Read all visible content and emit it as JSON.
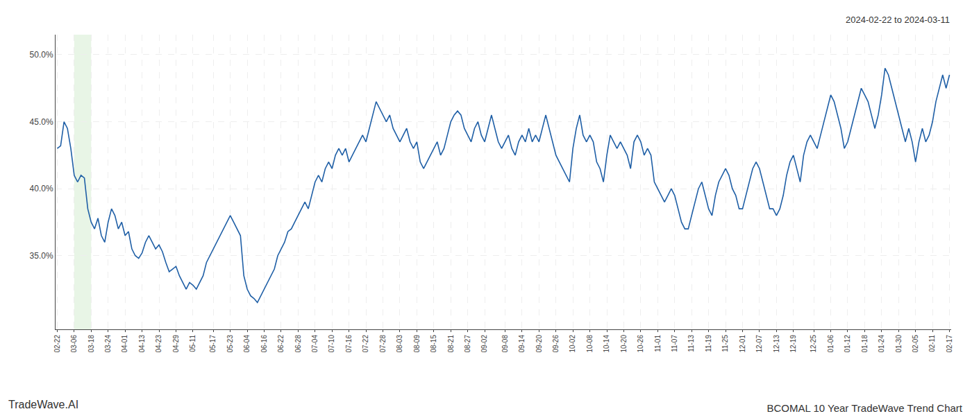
{
  "chart_data": {
    "type": "line",
    "title": "BCOMAL 10 Year TradeWave Trend Chart",
    "subtitle": "2024-02-22 to 2024-03-11",
    "annotations": [
      "TradeWave.AI"
    ],
    "color": "#1f5fa6",
    "grid": true,
    "highlight": {
      "start": "03-06",
      "end": "03-18",
      "color": "#d6ecd2"
    },
    "ylim": [
      29.5,
      51.5
    ],
    "yticks": [
      {
        "value": 35.0,
        "label": "35.0%"
      },
      {
        "value": 40.0,
        "label": "40.0%"
      },
      {
        "value": 45.0,
        "label": "45.0%"
      },
      {
        "value": 50.0,
        "label": "50.0%"
      }
    ],
    "categories": [
      "02-22",
      null,
      null,
      null,
      null,
      "03-06",
      null,
      null,
      null,
      null,
      "03-18",
      null,
      null,
      null,
      null,
      "03-24",
      null,
      null,
      null,
      null,
      "04-01",
      null,
      null,
      null,
      null,
      "04-13",
      null,
      null,
      null,
      null,
      "04-23",
      null,
      null,
      null,
      null,
      "04-29",
      null,
      null,
      null,
      null,
      "05-11",
      null,
      null,
      null,
      null,
      null,
      "05-17",
      null,
      null,
      null,
      null,
      "05-23",
      null,
      null,
      null,
      null,
      "06-04",
      null,
      null,
      null,
      null,
      "06-16",
      null,
      null,
      null,
      null,
      "06-22",
      null,
      null,
      null,
      null,
      "06-28",
      null,
      null,
      null,
      null,
      "07-04",
      null,
      null,
      null,
      null,
      "07-10",
      null,
      null,
      null,
      null,
      "07-16",
      null,
      null,
      null,
      null,
      "07-22",
      null,
      null,
      null,
      null,
      "07-28",
      null,
      null,
      null,
      null,
      "08-03",
      null,
      null,
      null,
      null,
      "08-09",
      null,
      null,
      null,
      null,
      "08-15",
      null,
      null,
      null,
      null,
      "08-21",
      null,
      null,
      null,
      null,
      "08-27",
      null,
      null,
      null,
      null,
      "09-02",
      null,
      null,
      null,
      null,
      null,
      "09-08",
      null,
      null,
      null,
      null,
      "09-14",
      null,
      null,
      null,
      null,
      "09-20",
      null,
      null,
      null,
      null,
      "09-26",
      null,
      null,
      null,
      null,
      "10-02",
      null,
      null,
      null,
      null,
      "10-08",
      null,
      null,
      null,
      null,
      "10-14",
      null,
      null,
      null,
      null,
      "10-20",
      null,
      null,
      null,
      null,
      "10-26",
      null,
      null,
      null,
      null,
      "11-01",
      null,
      null,
      null,
      null,
      "11-07",
      null,
      null,
      null,
      null,
      "11-13",
      null,
      null,
      null,
      null,
      "11-19",
      null,
      null,
      null,
      null,
      "11-25",
      null,
      null,
      null,
      null,
      "12-01",
      null,
      null,
      null,
      null,
      "12-07",
      null,
      null,
      null,
      null,
      "12-13",
      null,
      null,
      null,
      null,
      "12-19",
      null,
      null,
      null,
      null,
      null,
      "12-25",
      null,
      null,
      null,
      null,
      "01-06",
      null,
      null,
      null,
      null,
      "01-12",
      null,
      null,
      null,
      null,
      "01-18",
      null,
      null,
      null,
      null,
      "01-24",
      null,
      null,
      null,
      null,
      "01-30",
      null,
      null,
      null,
      null,
      "02-05",
      null,
      null,
      null,
      null,
      "02-11",
      null,
      null,
      null,
      null,
      "02-17"
    ],
    "values": [
      43.0,
      43.2,
      45.0,
      44.5,
      43.0,
      41.0,
      40.5,
      41.0,
      40.8,
      38.5,
      37.5,
      37.0,
      37.8,
      36.5,
      36.0,
      37.5,
      38.5,
      38.0,
      37.0,
      37.5,
      36.5,
      36.8,
      35.5,
      35.0,
      34.8,
      35.2,
      36.0,
      36.5,
      36.0,
      35.5,
      35.8,
      35.3,
      34.5,
      33.8,
      34.0,
      34.2,
      33.5,
      33.0,
      32.5,
      33.0,
      32.8,
      32.5,
      33.0,
      33.5,
      34.5,
      35.0,
      35.5,
      36.0,
      36.5,
      37.0,
      37.5,
      38.0,
      37.5,
      37.0,
      36.5,
      33.5,
      32.5,
      32.0,
      31.8,
      31.5,
      32.0,
      32.5,
      33.0,
      33.5,
      34.0,
      35.0,
      35.5,
      36.0,
      36.8,
      37.0,
      37.5,
      38.0,
      38.5,
      39.0,
      38.5,
      39.5,
      40.5,
      41.0,
      40.5,
      41.5,
      42.0,
      41.5,
      42.5,
      43.0,
      42.5,
      43.0,
      42.0,
      42.5,
      43.0,
      43.5,
      44.0,
      43.5,
      44.5,
      45.5,
      46.5,
      46.0,
      45.5,
      45.0,
      45.5,
      44.5,
      44.0,
      43.5,
      44.0,
      44.5,
      43.5,
      43.0,
      43.5,
      42.0,
      41.5,
      42.0,
      42.5,
      43.0,
      43.5,
      42.5,
      43.0,
      44.0,
      45.0,
      45.5,
      45.8,
      45.5,
      44.5,
      44.0,
      43.5,
      44.5,
      45.0,
      44.0,
      43.5,
      44.5,
      45.5,
      44.5,
      43.5,
      43.0,
      43.5,
      44.0,
      43.0,
      42.5,
      43.5,
      44.0,
      43.5,
      44.5,
      43.5,
      44.0,
      43.5,
      44.5,
      45.5,
      44.5,
      43.5,
      42.5,
      42.0,
      41.5,
      41.0,
      40.5,
      43.0,
      44.5,
      45.5,
      44.0,
      43.5,
      44.0,
      43.5,
      42.0,
      41.5,
      40.5,
      42.5,
      44.0,
      43.5,
      43.0,
      43.5,
      43.0,
      42.5,
      41.5,
      43.5,
      44.0,
      43.5,
      42.5,
      43.0,
      42.5,
      40.5,
      40.0,
      39.5,
      39.0,
      39.5,
      40.0,
      39.5,
      38.5,
      37.5,
      37.0,
      37.0,
      38.0,
      39.0,
      40.0,
      40.5,
      39.5,
      38.5,
      38.0,
      39.5,
      40.5,
      41.0,
      41.5,
      41.0,
      40.0,
      39.5,
      38.5,
      38.5,
      39.5,
      40.5,
      41.5,
      42.0,
      41.5,
      40.5,
      39.5,
      38.5,
      38.5,
      38.0,
      38.5,
      39.5,
      41.0,
      42.0,
      42.5,
      41.5,
      40.5,
      42.5,
      43.5,
      44.0,
      43.5,
      43.0,
      44.0,
      45.0,
      46.0,
      47.0,
      46.5,
      45.5,
      44.5,
      43.0,
      43.5,
      44.5,
      45.5,
      46.5,
      47.5,
      47.0,
      46.5,
      45.5,
      44.5,
      45.5,
      47.0,
      49.0,
      48.5,
      47.5,
      46.5,
      45.5,
      44.5,
      43.5,
      44.5,
      43.5,
      42.0,
      43.5,
      44.5,
      43.5,
      44.0,
      45.0,
      46.5,
      47.5,
      48.5,
      47.5,
      48.5
    ]
  }
}
